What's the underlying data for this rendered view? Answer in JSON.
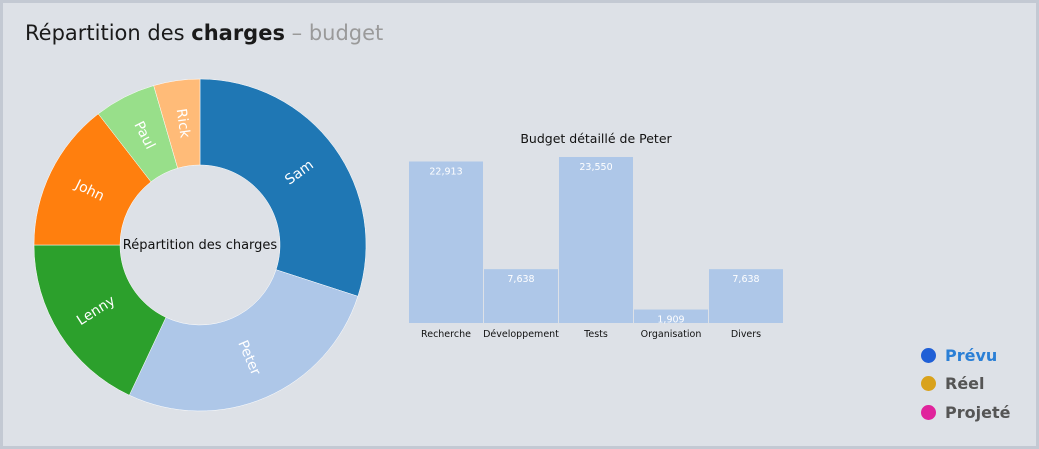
{
  "header": {
    "prefix": "Répartition des",
    "bold": "charges",
    "sep": "–",
    "muted": "budget"
  },
  "chart_data": [
    {
      "type": "pie",
      "variant": "donut",
      "center_label": "Répartition des charges",
      "labels": [
        "Sam",
        "Peter",
        "Lenny",
        "John",
        "Paul",
        "Rick"
      ],
      "values": [
        30,
        27,
        18,
        14.5,
        6,
        4.5
      ],
      "colors": [
        "#1f77b4",
        "#aec7e8",
        "#2ca02c",
        "#ff7f0e",
        "#98df8a",
        "#ffbb78"
      ],
      "label_colors": [
        "#ffffff",
        "#ffffff",
        "#ffffff",
        "#ffffff",
        "#ffffff",
        "#ffffff"
      ]
    },
    {
      "type": "bar",
      "title": "Budget détaillé de Peter",
      "categories": [
        "Recherche",
        "Développement",
        "Tests",
        "Organisation",
        "Divers"
      ],
      "values": [
        22913,
        7638,
        23550,
        1909,
        7638
      ],
      "value_labels": [
        "22,913",
        "7,638",
        "23,550",
        "1,909",
        "7,638"
      ],
      "color": "#aec7e8",
      "ylim": [
        0,
        23550
      ]
    }
  ],
  "legend": {
    "placement": "bottom-right",
    "items": [
      {
        "label": "Prévu",
        "color": "#1f5fd6",
        "active": true
      },
      {
        "label": "Réel",
        "color": "#d9a21b",
        "active": false
      },
      {
        "label": "Projeté",
        "color": "#e0239c",
        "active": false
      }
    ]
  }
}
